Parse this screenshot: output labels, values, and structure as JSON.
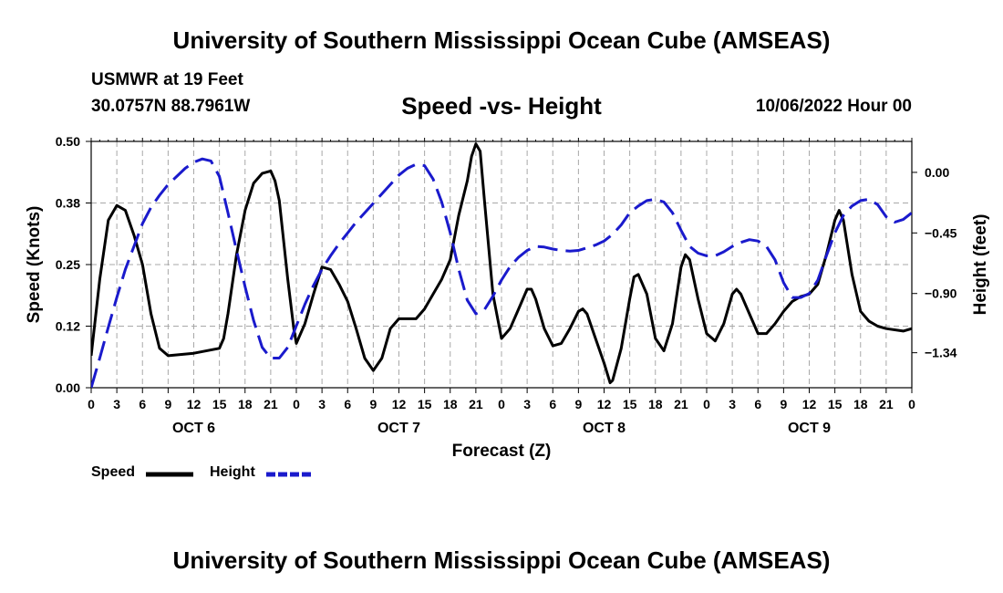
{
  "header": {
    "title": "University of Southern Mississippi Ocean Cube (AMSEAS)",
    "station": "USMWR at 19 Feet",
    "coords": "30.0757N  88.7961W",
    "subtitle": "Speed -vs- Height",
    "datetime": "10/06/2022 Hour 00"
  },
  "footer": {
    "title": "University of Southern Mississippi Ocean Cube (AMSEAS)"
  },
  "legend": {
    "speed_label": "Speed",
    "height_label": "Height"
  },
  "colors": {
    "speed": "#000000",
    "height": "#1a1acc",
    "grid": "#a8a8a8"
  },
  "chart_data": {
    "type": "line",
    "title": "Speed -vs- Height",
    "xlabel": "Forecast (Z)",
    "ylabel": "Speed (Knots)",
    "y2label": "Height (feet)",
    "x_hours_range": [
      0,
      96
    ],
    "x_tick_step_hours": 3,
    "x_tick_labels": [
      "0",
      "3",
      "6",
      "9",
      "12",
      "15",
      "18",
      "21",
      "0",
      "3",
      "6",
      "9",
      "12",
      "15",
      "18",
      "21",
      "0",
      "3",
      "6",
      "9",
      "12",
      "15",
      "18",
      "21",
      "0",
      "3",
      "6",
      "9",
      "12",
      "15",
      "18",
      "21",
      "0"
    ],
    "day_labels": [
      {
        "label": "OCT 6",
        "hour": 12
      },
      {
        "label": "OCT 7",
        "hour": 36
      },
      {
        "label": "OCT 8",
        "hour": 60
      },
      {
        "label": "OCT 9",
        "hour": 84
      }
    ],
    "ylim": [
      0,
      0.5
    ],
    "y_ticks": [
      0.0,
      0.125,
      0.25,
      0.375,
      0.5
    ],
    "y_tick_labels": [
      "0.00",
      "0.12",
      "0.25",
      "0.38",
      "0.50"
    ],
    "y2lim": [
      -1.6,
      0.23
    ],
    "y2_ticks": [
      0.0,
      -0.45,
      -0.9,
      -1.34
    ],
    "y2_tick_labels": [
      "0.00",
      "-0.45",
      "-0.90",
      "-1.34"
    ],
    "grid": true,
    "legend_position": "bottom-left",
    "series": [
      {
        "name": "Speed",
        "axis": "left",
        "style": "solid",
        "points": [
          [
            0,
            0.065
          ],
          [
            1,
            0.22
          ],
          [
            2,
            0.34
          ],
          [
            3,
            0.37
          ],
          [
            4,
            0.36
          ],
          [
            5,
            0.31
          ],
          [
            6,
            0.25
          ],
          [
            7,
            0.15
          ],
          [
            8,
            0.08
          ],
          [
            9,
            0.065
          ],
          [
            12,
            0.07
          ],
          [
            15,
            0.08
          ],
          [
            15.5,
            0.1
          ],
          [
            16,
            0.15
          ],
          [
            17,
            0.27
          ],
          [
            18,
            0.36
          ],
          [
            19,
            0.415
          ],
          [
            20,
            0.435
          ],
          [
            21,
            0.44
          ],
          [
            21.5,
            0.42
          ],
          [
            22,
            0.38
          ],
          [
            23,
            0.22
          ],
          [
            23.7,
            0.12
          ],
          [
            24,
            0.09
          ],
          [
            25,
            0.13
          ],
          [
            26,
            0.19
          ],
          [
            27,
            0.245
          ],
          [
            28,
            0.24
          ],
          [
            29,
            0.21
          ],
          [
            30,
            0.175
          ],
          [
            31,
            0.12
          ],
          [
            32,
            0.06
          ],
          [
            33,
            0.035
          ],
          [
            34,
            0.06
          ],
          [
            35,
            0.12
          ],
          [
            36,
            0.14
          ],
          [
            37,
            0.14
          ],
          [
            38,
            0.14
          ],
          [
            39,
            0.16
          ],
          [
            40,
            0.19
          ],
          [
            41,
            0.22
          ],
          [
            42,
            0.26
          ],
          [
            43,
            0.35
          ],
          [
            44,
            0.42
          ],
          [
            44.5,
            0.47
          ],
          [
            45,
            0.495
          ],
          [
            45.5,
            0.48
          ],
          [
            46,
            0.38
          ],
          [
            47,
            0.19
          ],
          [
            48,
            0.1
          ],
          [
            49,
            0.12
          ],
          [
            50,
            0.16
          ],
          [
            51,
            0.2
          ],
          [
            51.5,
            0.2
          ],
          [
            52,
            0.18
          ],
          [
            53,
            0.12
          ],
          [
            54,
            0.085
          ],
          [
            55,
            0.09
          ],
          [
            56,
            0.12
          ],
          [
            57,
            0.155
          ],
          [
            57.5,
            0.16
          ],
          [
            58,
            0.15
          ],
          [
            59,
            0.1
          ],
          [
            60,
            0.05
          ],
          [
            60.7,
            0.01
          ],
          [
            61,
            0.015
          ],
          [
            62,
            0.08
          ],
          [
            63,
            0.18
          ],
          [
            63.5,
            0.225
          ],
          [
            64,
            0.23
          ],
          [
            65,
            0.19
          ],
          [
            66,
            0.1
          ],
          [
            67,
            0.075
          ],
          [
            68,
            0.13
          ],
          [
            69,
            0.245
          ],
          [
            69.5,
            0.27
          ],
          [
            70,
            0.26
          ],
          [
            71,
            0.18
          ],
          [
            72,
            0.11
          ],
          [
            73,
            0.095
          ],
          [
            74,
            0.13
          ],
          [
            75,
            0.19
          ],
          [
            75.5,
            0.2
          ],
          [
            76,
            0.19
          ],
          [
            77,
            0.15
          ],
          [
            78,
            0.11
          ],
          [
            79,
            0.11
          ],
          [
            80,
            0.13
          ],
          [
            81,
            0.155
          ],
          [
            82,
            0.175
          ],
          [
            83,
            0.185
          ],
          [
            84,
            0.19
          ],
          [
            85,
            0.21
          ],
          [
            86,
            0.27
          ],
          [
            87,
            0.34
          ],
          [
            87.5,
            0.36
          ],
          [
            88,
            0.34
          ],
          [
            89,
            0.23
          ],
          [
            90,
            0.155
          ],
          [
            91,
            0.135
          ],
          [
            92,
            0.125
          ],
          [
            93,
            0.12
          ],
          [
            95,
            0.115
          ],
          [
            96,
            0.12
          ]
        ]
      },
      {
        "name": "Height",
        "axis": "right",
        "style": "dashed",
        "points": [
          [
            0,
            -1.6
          ],
          [
            1,
            -1.38
          ],
          [
            2,
            -1.15
          ],
          [
            3,
            -0.93
          ],
          [
            4,
            -0.72
          ],
          [
            5,
            -0.55
          ],
          [
            6,
            -0.38
          ],
          [
            7,
            -0.26
          ],
          [
            8,
            -0.17
          ],
          [
            9,
            -0.09
          ],
          [
            10,
            -0.03
          ],
          [
            11,
            0.03
          ],
          [
            12,
            0.075
          ],
          [
            13,
            0.1
          ],
          [
            14,
            0.085
          ],
          [
            15,
            -0.03
          ],
          [
            16,
            -0.3
          ],
          [
            17,
            -0.58
          ],
          [
            18,
            -0.85
          ],
          [
            19,
            -1.1
          ],
          [
            20,
            -1.3
          ],
          [
            21,
            -1.38
          ],
          [
            22,
            -1.38
          ],
          [
            23,
            -1.3
          ],
          [
            24,
            -1.14
          ],
          [
            25,
            -0.98
          ],
          [
            26,
            -0.84
          ],
          [
            27,
            -0.72
          ],
          [
            28,
            -0.62
          ],
          [
            29,
            -0.53
          ],
          [
            30,
            -0.45
          ],
          [
            31,
            -0.37
          ],
          [
            32,
            -0.3
          ],
          [
            33,
            -0.23
          ],
          [
            34,
            -0.16
          ],
          [
            35,
            -0.09
          ],
          [
            36,
            -0.02
          ],
          [
            37,
            0.03
          ],
          [
            38,
            0.06
          ],
          [
            39,
            0.05
          ],
          [
            40,
            -0.05
          ],
          [
            41,
            -0.22
          ],
          [
            42,
            -0.45
          ],
          [
            43,
            -0.72
          ],
          [
            44,
            -0.95
          ],
          [
            45,
            -1.05
          ],
          [
            46,
            -1.02
          ],
          [
            47,
            -0.92
          ],
          [
            48,
            -0.8
          ],
          [
            49,
            -0.7
          ],
          [
            50,
            -0.63
          ],
          [
            51,
            -0.58
          ],
          [
            52,
            -0.55
          ],
          [
            53,
            -0.555
          ],
          [
            54,
            -0.57
          ],
          [
            55,
            -0.58
          ],
          [
            56,
            -0.585
          ],
          [
            57,
            -0.58
          ],
          [
            58,
            -0.56
          ],
          [
            59,
            -0.54
          ],
          [
            60,
            -0.51
          ],
          [
            61,
            -0.46
          ],
          [
            62,
            -0.39
          ],
          [
            63,
            -0.3
          ],
          [
            64,
            -0.25
          ],
          [
            65,
            -0.21
          ],
          [
            66,
            -0.2
          ],
          [
            67,
            -0.22
          ],
          [
            68,
            -0.3
          ],
          [
            69,
            -0.43
          ],
          [
            70,
            -0.55
          ],
          [
            71,
            -0.6
          ],
          [
            72,
            -0.62
          ],
          [
            73,
            -0.62
          ],
          [
            74,
            -0.59
          ],
          [
            75,
            -0.55
          ],
          [
            76,
            -0.52
          ],
          [
            77,
            -0.5
          ],
          [
            78,
            -0.51
          ],
          [
            79,
            -0.55
          ],
          [
            80,
            -0.65
          ],
          [
            81,
            -0.82
          ],
          [
            82,
            -0.93
          ],
          [
            83,
            -0.93
          ],
          [
            84,
            -0.9
          ],
          [
            85,
            -0.8
          ],
          [
            86,
            -0.62
          ],
          [
            87,
            -0.45
          ],
          [
            88,
            -0.32
          ],
          [
            89,
            -0.25
          ],
          [
            90,
            -0.21
          ],
          [
            91,
            -0.2
          ],
          [
            92,
            -0.24
          ],
          [
            93,
            -0.33
          ],
          [
            94,
            -0.37
          ],
          [
            95,
            -0.35
          ],
          [
            96,
            -0.3
          ]
        ]
      }
    ]
  }
}
